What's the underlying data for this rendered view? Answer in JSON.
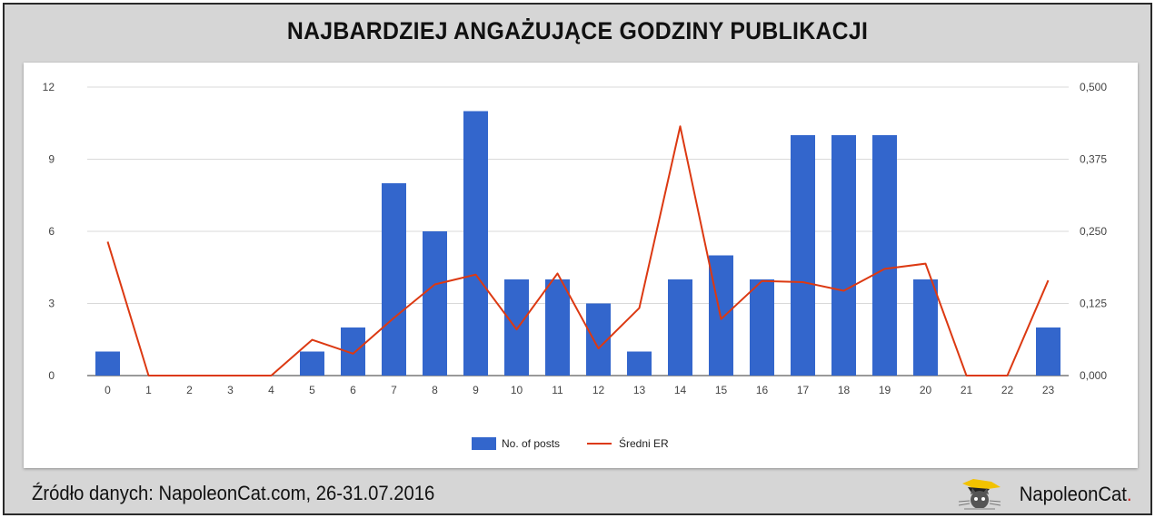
{
  "title": "NAJBARDZIEJ ANGAŻUJĄCE GODZINY PUBLIKACJI",
  "footer": {
    "source": "Źródło danych: NapoleonCat.com, 26-31.07.2016",
    "brand_name": "NapoleonCat",
    "brand_dot": ".",
    "brand_icon": "cat-logo-icon"
  },
  "colors": {
    "bars": "#3366cc",
    "line": "#dc3912",
    "grid": "#d9d9d9",
    "frame_bg": "#d6d6d6"
  },
  "chart_data": {
    "type": "bar",
    "title": "",
    "categories": [
      "0",
      "1",
      "2",
      "3",
      "4",
      "5",
      "6",
      "7",
      "8",
      "9",
      "10",
      "11",
      "12",
      "13",
      "14",
      "15",
      "16",
      "17",
      "18",
      "19",
      "20",
      "21",
      "22",
      "23"
    ],
    "series": [
      {
        "name": "No. of posts",
        "type": "bar",
        "axis": "left",
        "values": [
          1,
          0,
          0,
          0,
          0,
          1,
          2,
          8,
          6,
          11,
          4,
          4,
          3,
          1,
          4,
          5,
          4,
          10,
          10,
          10,
          4,
          0,
          0,
          2
        ]
      },
      {
        "name": "Średni ER",
        "type": "line",
        "axis": "right",
        "values": [
          0.232,
          0,
          0,
          0,
          0,
          0.062,
          0.038,
          0.1,
          0.158,
          0.175,
          0.08,
          0.177,
          0.047,
          0.117,
          0.432,
          0.098,
          0.164,
          0.162,
          0.147,
          0.185,
          0.194,
          0,
          0,
          0.165
        ]
      }
    ],
    "y_left": {
      "ylim": [
        0,
        12
      ],
      "ticks": [
        "0",
        "3",
        "6",
        "9",
        "12"
      ],
      "tick_values": [
        0,
        3,
        6,
        9,
        12
      ]
    },
    "y_right": {
      "ylim": [
        0,
        0.5
      ],
      "ticks": [
        "0,000",
        "0,125",
        "0,250",
        "0,375",
        "0,500"
      ],
      "tick_values": [
        0,
        0.125,
        0.25,
        0.375,
        0.5
      ]
    },
    "xlabel": "",
    "ylabel": "",
    "grid": true,
    "legend": "bottom-center"
  }
}
